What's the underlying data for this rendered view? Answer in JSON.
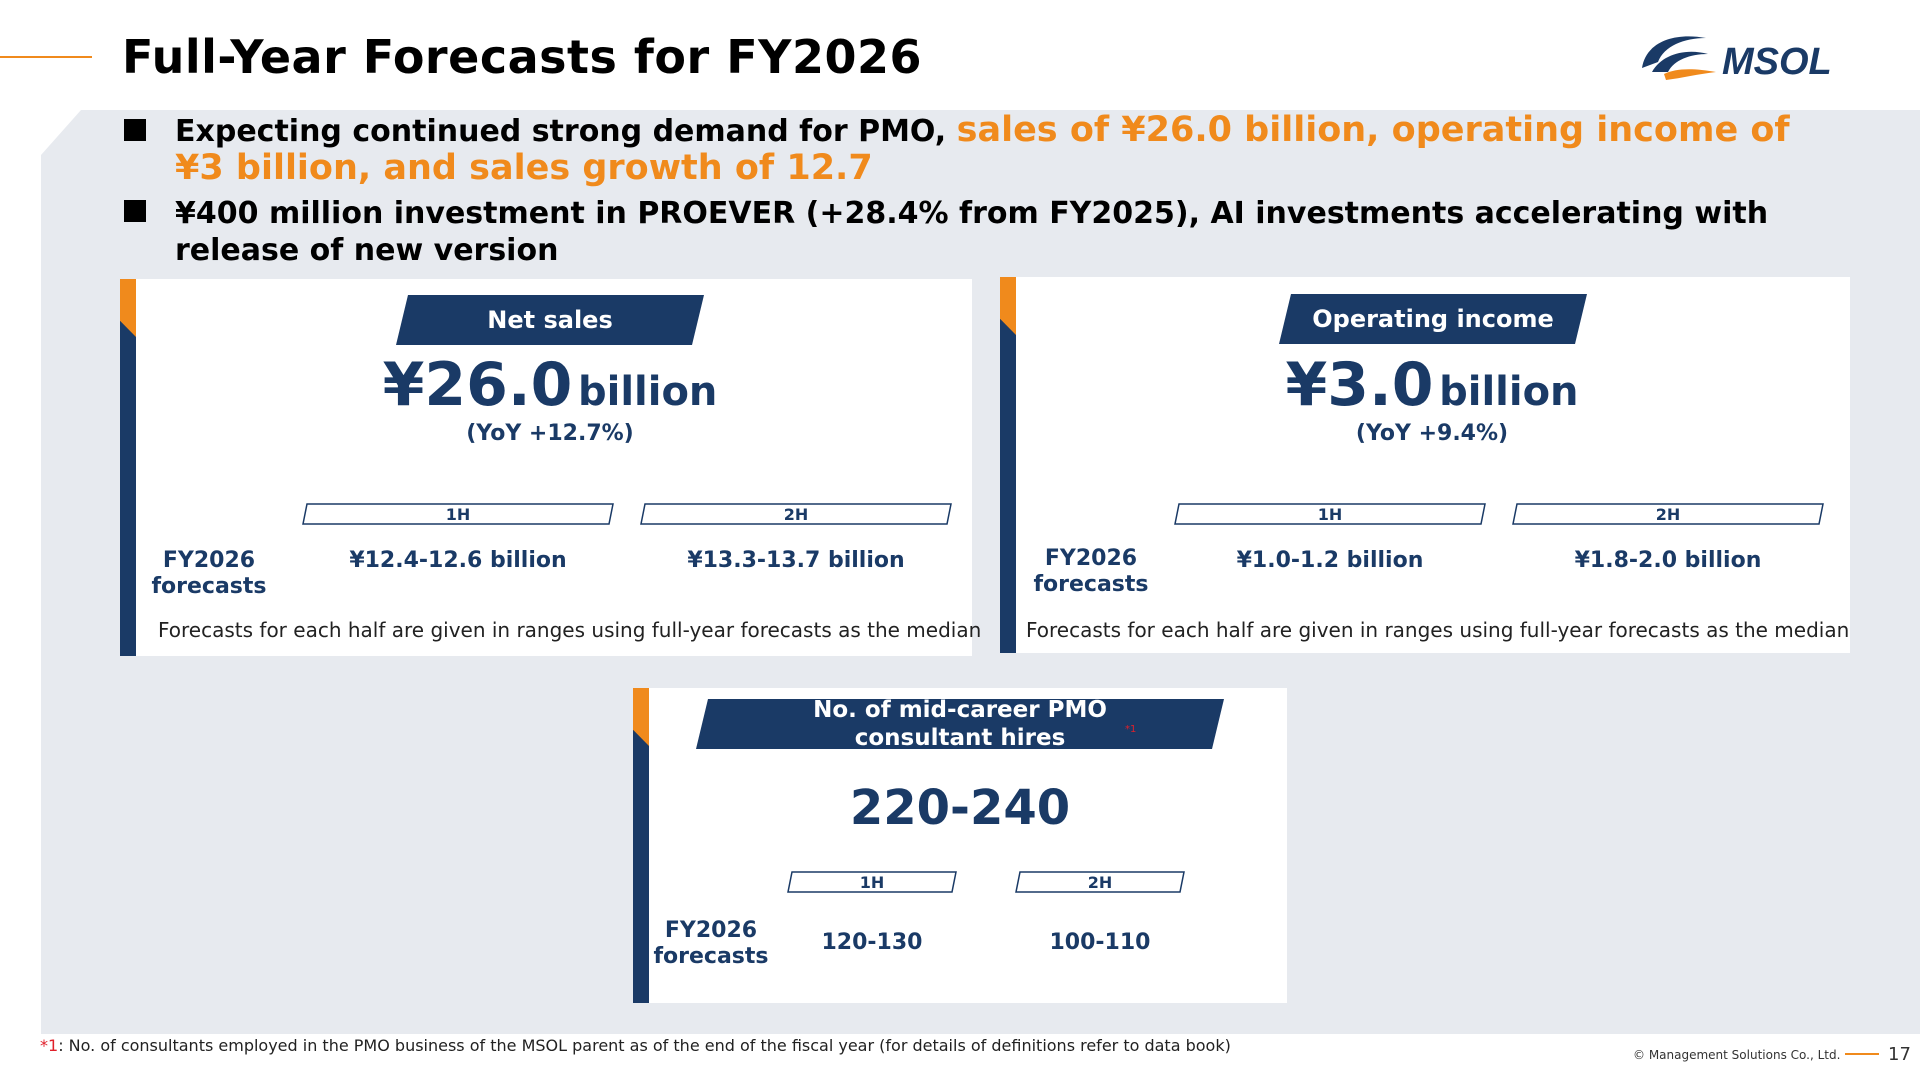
{
  "header": {
    "title": "Full-Year Forecasts for FY2026",
    "logo_text": "MSOL",
    "brand_colors": {
      "navy": "#1a3a66",
      "orange": "#f08a1c"
    }
  },
  "bullets": [
    {
      "text": "Expecting continued strong demand for PMO, ",
      "highlight": "sales of ¥26.0 billion, operating income of ¥3 billion, and sales growth of 12.7"
    },
    {
      "text": "¥400 million investment in PROEVER (+28.4% from FY2025), AI investments accelerating with release of new version"
    }
  ],
  "cards": {
    "net_sales": {
      "label": "Net sales",
      "value": "¥26.0",
      "unit": "billion",
      "yoy": "(YoY +12.7%)",
      "h1_label": "1H",
      "h2_label": "2H",
      "fy_label": "FY2026 forecasts",
      "h1_value": "¥12.4-12.6 billion",
      "h2_value": "¥13.3-13.7 billion",
      "note": "Forecasts for each half are given in ranges using full-year forecasts as the median"
    },
    "operating_income": {
      "label": "Operating income",
      "value": "¥3.0",
      "unit": "billion",
      "yoy": "(YoY +9.4%)",
      "h1_label": "1H",
      "h2_label": "2H",
      "fy_label": "FY2026 forecasts",
      "h1_value": "¥1.0-1.2 billion",
      "h2_value": "¥1.8-2.0 billion",
      "note": "Forecasts for each half are given in ranges using full-year forecasts as the median"
    },
    "hires": {
      "label": "No. of mid-career PMO consultant hires",
      "footnote_mark": "*1",
      "value": "220-240",
      "h1_label": "1H",
      "h2_label": "2H",
      "fy_label": "FY2026 forecasts",
      "h1_value": "120-130",
      "h2_value": "100-110"
    }
  },
  "footer": {
    "footnote_mark": "*1",
    "footnote": ": No. of consultants employed in the PMO business of the MSOL parent as of the end of the fiscal year (for details of definitions refer to data book)",
    "copyright": "© Management Solutions Co., Ltd.",
    "page": "17"
  }
}
